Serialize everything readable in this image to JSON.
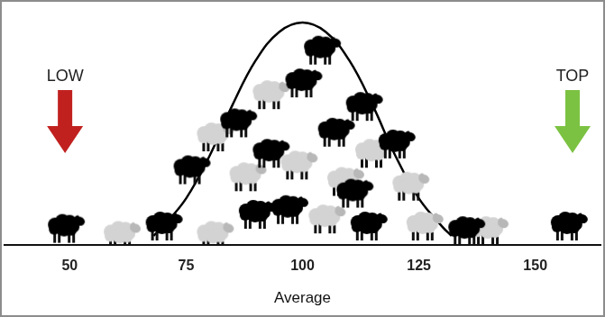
{
  "chart_data": {
    "type": "line",
    "x_label": "Average",
    "xlim": [
      36,
      164
    ],
    "xticks": [
      50,
      75,
      100,
      125,
      150
    ],
    "ylim": [
      0,
      100
    ],
    "tick_labels": "x",
    "grid": false,
    "series": [
      {
        "type": "line",
        "color": "#000000",
        "x": [
          68,
          70,
          75,
          80,
          85,
          90,
          95,
          100,
          105,
          110,
          115,
          120,
          125,
          130,
          132
        ],
        "values": [
          4,
          8,
          20,
          38,
          60,
          79,
          91,
          95,
          91,
          79,
          60,
          38,
          20,
          8,
          4
        ]
      },
      {
        "type": "scatter",
        "marker": "sheep",
        "color": "#d3d3d3",
        "x": [
          61,
          81,
          81,
          93,
          99,
          105,
          109,
          123,
          126,
          140,
          88,
          115
        ],
        "values": [
          5,
          5,
          47,
          65,
          35,
          12,
          28,
          26,
          9,
          7,
          30,
          40
        ]
      },
      {
        "type": "scatter",
        "marker": "sheep",
        "color": "#000000",
        "x": [
          49,
          70,
          76,
          86,
          90,
          97,
          93,
          100,
          104,
          107,
          113,
          114,
          120,
          111,
          135,
          157
        ],
        "values": [
          8,
          9,
          33,
          53,
          14,
          16,
          40,
          70,
          84,
          49,
          60,
          9,
          44,
          23,
          7,
          9
        ]
      }
    ],
    "annotations": [
      {
        "text": "LOW",
        "x": 49,
        "color": "#c0211f"
      },
      {
        "text": "TOP",
        "x": 158,
        "color": "#7cc242"
      }
    ]
  }
}
